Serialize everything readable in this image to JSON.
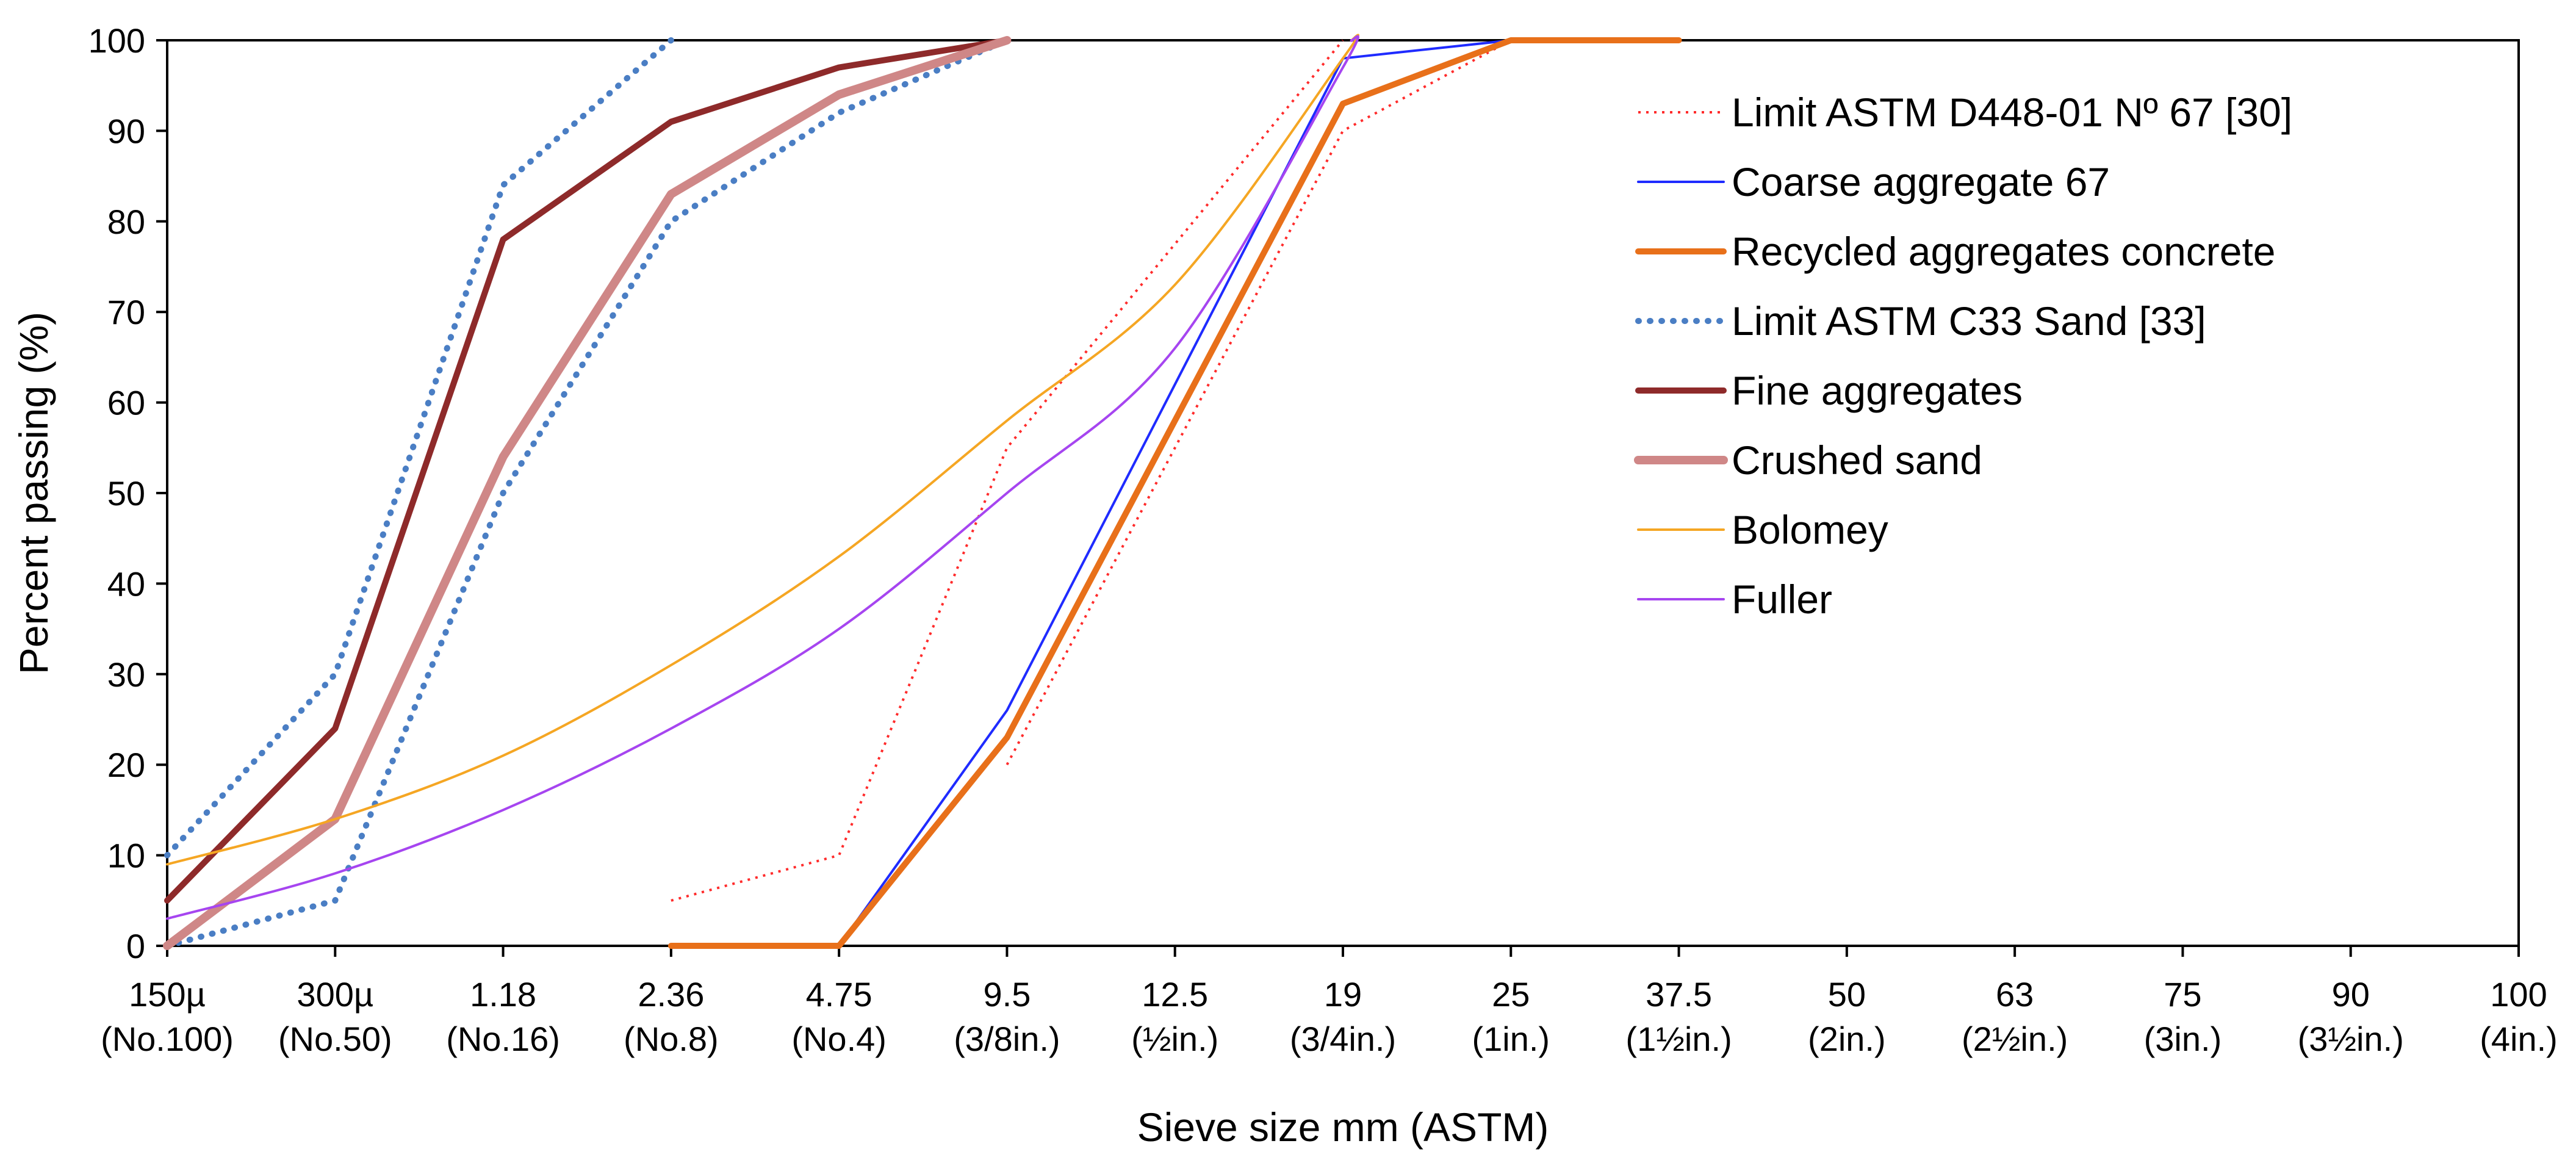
{
  "chart_data": {
    "type": "line",
    "xlabel": "Sieve size mm (ASTM)",
    "ylabel": "Percent passing (%)",
    "ylim": [
      0,
      100
    ],
    "yticks": [
      0,
      10,
      20,
      30,
      40,
      50,
      60,
      70,
      80,
      90,
      100
    ],
    "grid": false,
    "legend_position": "top-right inside",
    "categories": [
      {
        "size": "150µ",
        "astm": "(No.100)"
      },
      {
        "size": "300µ",
        "astm": "(No.50)"
      },
      {
        "size": "1.18",
        "astm": "(No.16)"
      },
      {
        "size": "2.36",
        "astm": "(No.8)"
      },
      {
        "size": "4.75",
        "astm": "(No.4)"
      },
      {
        "size": "9.5",
        "astm": "(3/8in.)"
      },
      {
        "size": "12.5",
        "astm": "(½in.)"
      },
      {
        "size": "19",
        "astm": "(3/4in.)"
      },
      {
        "size": "25",
        "astm": "(1in.)"
      },
      {
        "size": "37.5",
        "astm": "(1½in.)"
      },
      {
        "size": "50",
        "astm": "(2in.)"
      },
      {
        "size": "63",
        "astm": "(2½in.)"
      },
      {
        "size": "75",
        "astm": "(3in.)"
      },
      {
        "size": "90",
        "astm": "(3½in.)"
      },
      {
        "size": "100",
        "astm": "(4in.)"
      }
    ],
    "series": [
      {
        "name": "Limit ASTM D448-01 Nº 67 [30]",
        "color": "#ff2b2b",
        "style": "dotted-thin",
        "paths": [
          [
            [
              3,
              5
            ],
            [
              4,
              10
            ],
            [
              5,
              55
            ],
            [
              7,
              100
            ]
          ],
          [
            [
              5,
              20
            ],
            [
              7,
              90
            ],
            [
              8,
              100
            ]
          ]
        ]
      },
      {
        "name": "Coarse aggregate 67",
        "color": "#1f2bff",
        "style": "solid-thin",
        "paths": [
          [
            [
              4,
              0
            ],
            [
              5,
              26
            ],
            [
              7,
              98
            ],
            [
              8,
              100
            ],
            [
              9,
              100
            ]
          ]
        ]
      },
      {
        "name": "Recycled aggregates concrete",
        "color": "#e8701a",
        "style": "solid-thick",
        "paths": [
          [
            [
              3,
              0
            ],
            [
              4,
              0
            ],
            [
              5,
              23
            ],
            [
              7,
              93
            ],
            [
              8,
              100
            ],
            [
              9,
              100
            ]
          ]
        ]
      },
      {
        "name": "Limit ASTM C33 Sand [33]",
        "color": "#4a7ec4",
        "style": "dotted-thick",
        "paths": [
          [
            [
              0,
              10
            ],
            [
              1,
              30
            ],
            [
              2,
              84
            ],
            [
              3,
              100
            ]
          ],
          [
            [
              0,
              0
            ],
            [
              1,
              5
            ],
            [
              2,
              50
            ],
            [
              3,
              80
            ],
            [
              4,
              92
            ],
            [
              5,
              100
            ]
          ]
        ]
      },
      {
        "name": "Fine aggregates",
        "color": "#8e2a2a",
        "style": "solid-thick",
        "paths": [
          [
            [
              0,
              5
            ],
            [
              1,
              24
            ],
            [
              2,
              78
            ],
            [
              3,
              91
            ],
            [
              4,
              97
            ],
            [
              5,
              100
            ]
          ]
        ]
      },
      {
        "name": "Crushed sand",
        "color": "#cf8787",
        "style": "solid-xthick",
        "paths": [
          [
            [
              0,
              0
            ],
            [
              1,
              14
            ],
            [
              2,
              54
            ],
            [
              3,
              83
            ],
            [
              4,
              94
            ],
            [
              5,
              100
            ]
          ]
        ]
      },
      {
        "name": "Bolomey",
        "color": "#f5a623",
        "style": "smooth-thin",
        "paths": [
          [
            [
              0,
              9
            ],
            [
              1,
              14
            ],
            [
              2,
              21
            ],
            [
              3,
              31
            ],
            [
              4,
              43
            ],
            [
              5,
              58
            ],
            [
              6,
              73
            ],
            [
              7,
              98
            ],
            [
              7.05,
              100
            ]
          ]
        ]
      },
      {
        "name": "Fuller",
        "color": "#a645f0",
        "style": "smooth-thin",
        "paths": [
          [
            [
              0,
              3
            ],
            [
              1,
              8
            ],
            [
              2,
              15
            ],
            [
              3,
              24
            ],
            [
              4,
              35
            ],
            [
              5,
              50
            ],
            [
              6,
              66
            ],
            [
              7,
              97
            ],
            [
              7.05,
              100
            ]
          ]
        ]
      }
    ]
  }
}
